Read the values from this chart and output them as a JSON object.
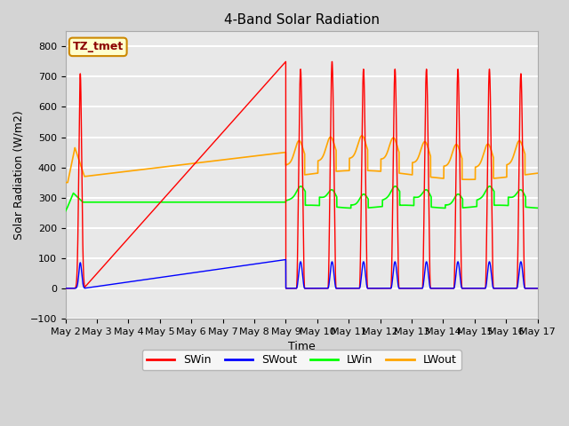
{
  "title": "4-Band Solar Radiation",
  "xlabel": "Time",
  "ylabel": "Solar Radiation (W/m2)",
  "ylim": [
    -100,
    850
  ],
  "xlim": [
    0,
    15
  ],
  "annotation_text": "TZ_tmet",
  "legend_labels": [
    "SWin",
    "SWout",
    "LWin",
    "LWout"
  ],
  "legend_colors": [
    "red",
    "blue",
    "lime",
    "orange"
  ],
  "fig_facecolor": "#d4d4d4",
  "ax_facecolor": "#e8e8e8",
  "grid_color": "white",
  "yticks": [
    -100,
    0,
    100,
    200,
    300,
    400,
    500,
    600,
    700,
    800
  ],
  "xtick_labels": [
    "May 2",
    "May 3",
    "May 4",
    "May 5",
    "May 6",
    "May 7",
    "May 8",
    "May 9",
    "May 10",
    "May 11",
    "May 12",
    "May 13",
    "May 14",
    "May 15",
    "May 16",
    "May 17"
  ],
  "xtick_positions": [
    0,
    1,
    2,
    3,
    4,
    5,
    6,
    7,
    8,
    9,
    10,
    11,
    12,
    13,
    14,
    15
  ]
}
